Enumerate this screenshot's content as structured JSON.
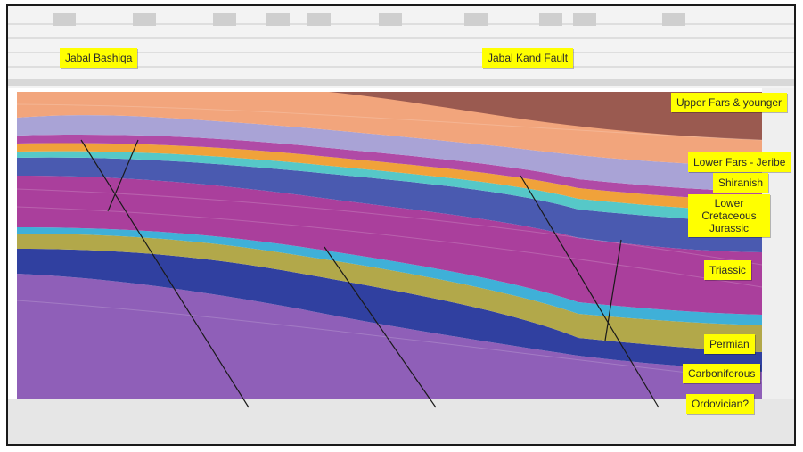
{
  "header_labels": {
    "left": "Jabal Bashiqa",
    "right": "Jabal Kand Fault"
  },
  "formations": [
    {
      "id": "upper_fars",
      "label": "Upper Fars & younger"
    },
    {
      "id": "lower_fars",
      "label": "Lower Fars - Jeribe"
    },
    {
      "id": "shiranish",
      "label": "Shiranish"
    },
    {
      "id": "lower_cret",
      "label": "Lower Cretaceous Jurassic"
    },
    {
      "id": "triassic",
      "label": "Triassic"
    },
    {
      "id": "permian",
      "label": "Permian"
    },
    {
      "id": "carboniferous",
      "label": "Carboniferous"
    },
    {
      "id": "ordovician",
      "label": "Ordovician?"
    }
  ],
  "colors": {
    "upper_fars_dark": "#9a5a50",
    "upper_fars_light": "#f2a57c",
    "lavender": "#a9a3d6",
    "magenta_band": "#b04aa6",
    "orange_band": "#f0a23a",
    "cyan_band": "#56c8c8",
    "blue": "#4a5ab0",
    "purple": "#aa3f9c",
    "olive": "#b2a84a",
    "navy": "#3040a0",
    "violet": "#8f5fb8",
    "label_fill": "#ffff00"
  }
}
